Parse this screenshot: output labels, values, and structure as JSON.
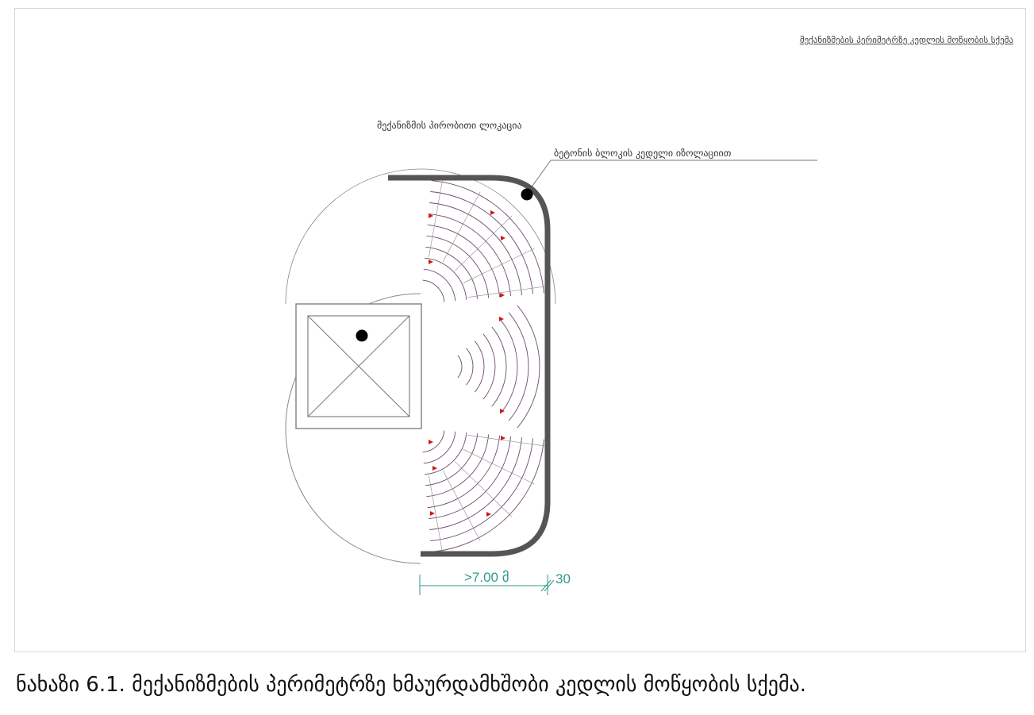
{
  "drawing": {
    "title": "მექანიზმების პერიმეტრზე კედლის მოწყობის სქემა",
    "label_mechanism_location": "მექანიზმის პირობითი ლოკაცია",
    "label_wall": "ბეტონის ბლოკის კედელი იზოლაციით",
    "dimension_distance": ">7.00 მ",
    "dimension_thickness": "30"
  },
  "caption": "ნახაზი 6.1. მექანიზმების პერიმეტრზე ხმაურდამხშობი კედლის მოწყობის სქემა.",
  "colors": {
    "wall": "#555555",
    "arcs": "#6d4a6e",
    "arrows": "#d01818",
    "dimension": "#2f9a8a",
    "thin_lines": "#888888"
  }
}
